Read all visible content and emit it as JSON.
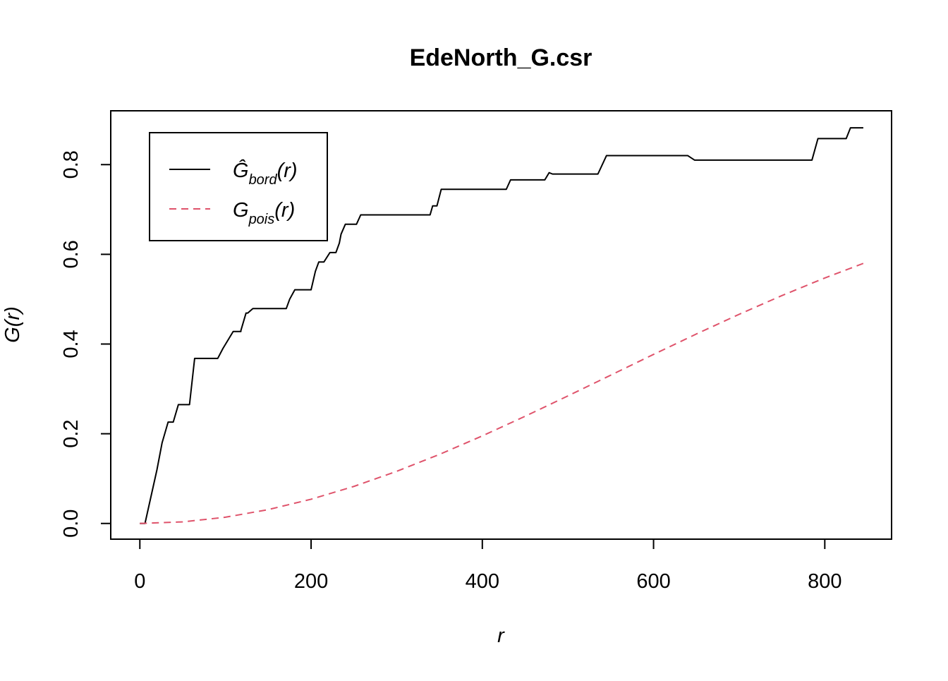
{
  "chart_data": {
    "type": "line",
    "title": "EdeNorth_G.csr",
    "xlabel": "r",
    "ylabel": "G(r)",
    "xlim": [
      -34,
      878
    ],
    "ylim": [
      -0.035,
      0.92
    ],
    "x_ticks": [
      0,
      200,
      400,
      600,
      800
    ],
    "y_ticks": [
      0.0,
      0.2,
      0.4,
      0.6,
      0.8
    ],
    "x_tick_labels": [
      "0",
      "200",
      "400",
      "600",
      "800"
    ],
    "y_tick_labels": [
      "0.0",
      "0.2",
      "0.4",
      "0.6",
      "0.8"
    ],
    "legend_position": "top-left",
    "grid": false,
    "series": [
      {
        "name": "Ĝbord(r)",
        "name_main": "Ĝ",
        "name_sub": "bord",
        "name_arg": "(r)",
        "color": "#000000",
        "style": "solid",
        "x": [
          0,
          6,
          20,
          26,
          33,
          39,
          45,
          50,
          58,
          64,
          68,
          75,
          91,
          97,
          109,
          118,
          118,
          124,
          126,
          132,
          136,
          171,
          175,
          181,
          200,
          205,
          209,
          215,
          222,
          229,
          233,
          235,
          240,
          253,
          258,
          262,
          339,
          342,
          347,
          352,
          420,
          428,
          433,
          473,
          478,
          482,
          535,
          545,
          640,
          648,
          785,
          792,
          825,
          830,
          845
        ],
        "y": [
          0.0,
          0.0,
          0.12,
          0.18,
          0.226,
          0.226,
          0.265,
          0.265,
          0.265,
          0.368,
          0.368,
          0.368,
          0.368,
          0.39,
          0.428,
          0.428,
          0.43,
          0.469,
          0.469,
          0.479,
          0.479,
          0.479,
          0.5,
          0.521,
          0.521,
          0.562,
          0.583,
          0.583,
          0.604,
          0.604,
          0.625,
          0.645,
          0.667,
          0.667,
          0.688,
          0.688,
          0.688,
          0.708,
          0.708,
          0.745,
          0.745,
          0.745,
          0.766,
          0.766,
          0.782,
          0.779,
          0.779,
          0.82,
          0.82,
          0.81,
          0.81,
          0.858,
          0.858,
          0.882,
          0.882
        ]
      },
      {
        "name": "Gpois(r)",
        "name_main": "G",
        "name_sub": "pois",
        "name_arg": "(r)",
        "color": "#DF536B",
        "style": "dashed",
        "x": [
          0,
          50,
          100,
          150,
          200,
          250,
          300,
          350,
          400,
          450,
          500,
          550,
          600,
          650,
          700,
          750,
          800,
          845
        ],
        "y": [
          0.0,
          0.0035,
          0.0139,
          0.0309,
          0.054,
          0.0826,
          0.1162,
          0.154,
          0.1952,
          0.239,
          0.2844,
          0.3306,
          0.3769,
          0.4224,
          0.4663,
          0.5081,
          0.5473,
          0.5798
        ]
      }
    ]
  }
}
